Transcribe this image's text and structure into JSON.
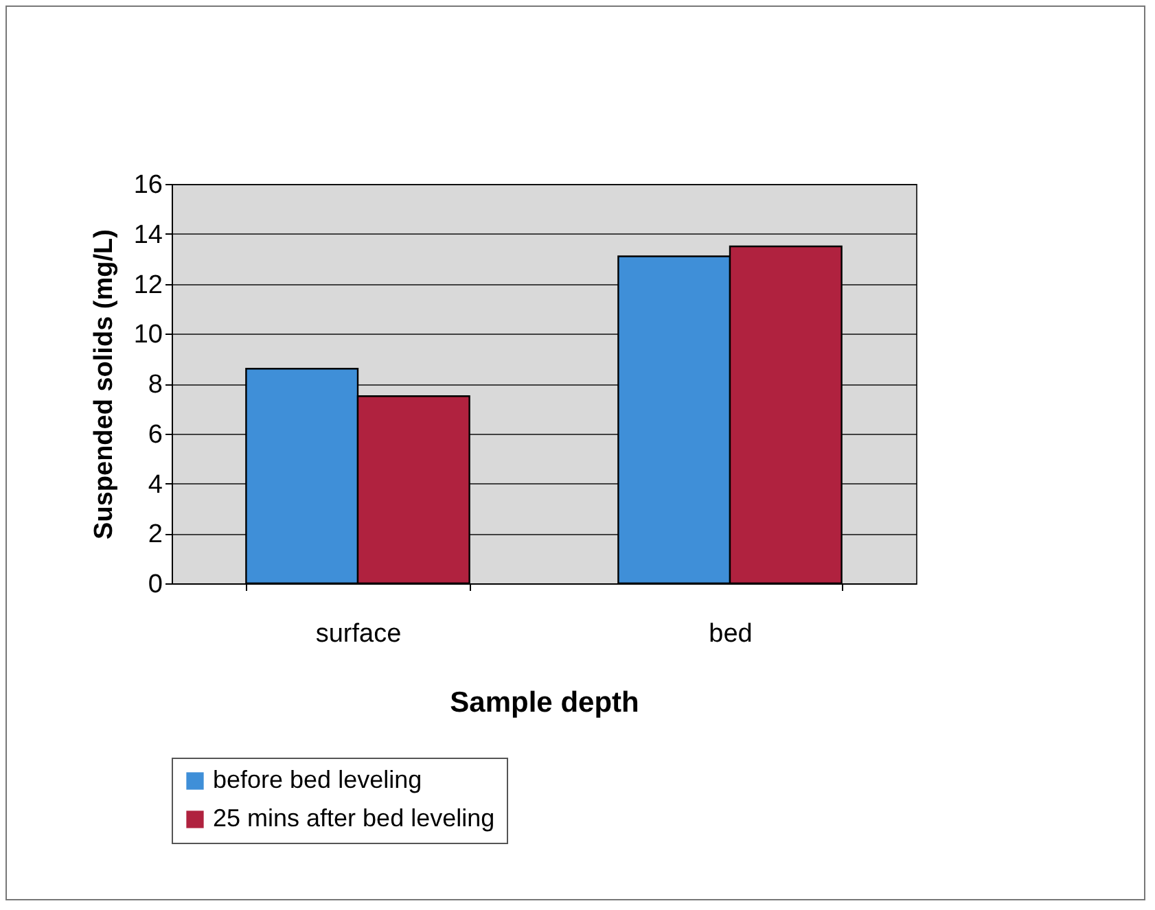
{
  "chart_data": {
    "type": "bar",
    "xlabel": "Sample depth",
    "ylabel": "Suspended solids (mg/L)",
    "categories": [
      "surface",
      "bed"
    ],
    "series": [
      {
        "name": "before bed leveling",
        "color": "#3f8fd8",
        "values": [
          8.6,
          13.1
        ]
      },
      {
        "name": "25 mins after bed leveling",
        "color": "#b0223f",
        "values": [
          7.5,
          13.5
        ]
      }
    ],
    "ylim": [
      0,
      16
    ],
    "yticks": [
      0,
      2,
      4,
      6,
      8,
      10,
      12,
      14,
      16
    ],
    "grid": "y",
    "legend": "bottom"
  }
}
